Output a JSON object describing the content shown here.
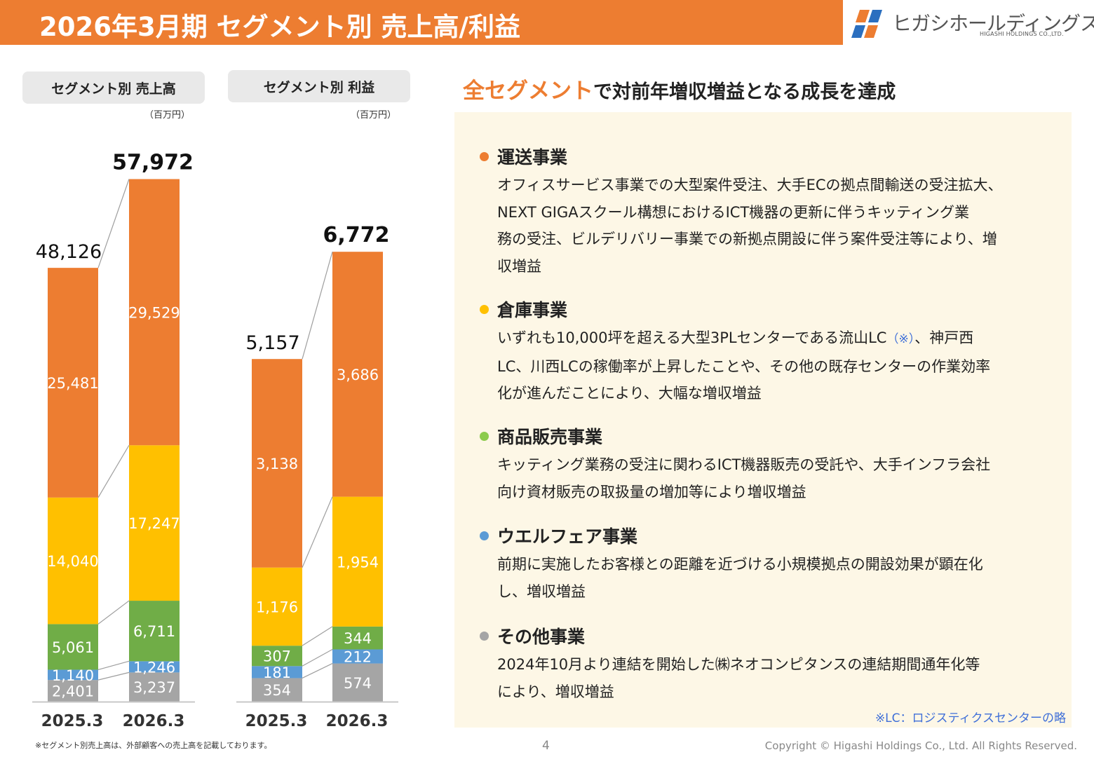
{
  "header": {
    "title": "2026年3月期 セグメント別 売上高/利益"
  },
  "logo": {
    "name": "ヒガシホールディングス",
    "sub": "HIGASHI HOLDINGS CO.,LTD."
  },
  "colors": {
    "transport": "#ED7D31",
    "warehouse": "#FFC000",
    "sales": "#70AD47",
    "welfare": "#5B9BD5",
    "other": "#A5A5A5",
    "accent": "#ED7D31"
  },
  "left": {
    "revenue_label": "セグメント別 売上高",
    "profit_label": "セグメント別 利益",
    "unit": "（百万円）"
  },
  "chart_data": [
    {
      "type": "bar",
      "stacked": true,
      "title": "セグメント別 売上高",
      "unit": "（百万円）",
      "categories": [
        "2025.3",
        "2026.3"
      ],
      "totals": [
        "48,126",
        "57,972"
      ],
      "series": [
        {
          "values": [
            2401,
            3237
          ],
          "labels": [
            "2,401",
            "3,237"
          ],
          "color": "#A5A5A5"
        },
        {
          "values": [
            1140,
            1246
          ],
          "labels": [
            "1,140",
            "1,246"
          ],
          "color": "#5B9BD5"
        },
        {
          "values": [
            5061,
            6711
          ],
          "labels": [
            "5,061",
            "6,711"
          ],
          "color": "#70AD47"
        },
        {
          "values": [
            14040,
            17247
          ],
          "labels": [
            "14,040",
            "17,247"
          ],
          "color": "#FFC000"
        },
        {
          "values": [
            25481,
            29529
          ],
          "labels": [
            "25,481",
            "29,529"
          ],
          "color": "#ED7D31"
        }
      ]
    },
    {
      "type": "bar",
      "stacked": true,
      "title": "セグメント別 利益",
      "unit": "（百万円）",
      "categories": [
        "2025.3",
        "2026.3"
      ],
      "totals": [
        "5,157",
        "6,772"
      ],
      "series": [
        {
          "values": [
            354,
            574
          ],
          "labels": [
            "354",
            "574"
          ],
          "color": "#A5A5A5"
        },
        {
          "values": [
            181,
            212
          ],
          "labels": [
            "181",
            "212"
          ],
          "color": "#5B9BD5"
        },
        {
          "values": [
            307,
            344
          ],
          "labels": [
            "307",
            "344"
          ],
          "color": "#70AD47"
        },
        {
          "values": [
            1176,
            1954
          ],
          "labels": [
            "1,176",
            "1,954"
          ],
          "color": "#FFC000"
        },
        {
          "values": [
            3138,
            3686
          ],
          "labels": [
            "3,138",
            "3,686"
          ],
          "color": "#ED7D31"
        }
      ]
    }
  ],
  "right": {
    "headline_accent": "全セグメント",
    "headline_rest": "で対前年増収増益となる成長を達成",
    "segments": [
      {
        "title": "運送事業",
        "color": "#ED7D31",
        "lines": [
          "オフィスサービス事業での大型案件受注、大手ECの拠点間輸送の受注拡大、",
          "NEXT GIGAスクール構想におけるICT機器の更新に伴うキッティング業",
          "務の受注、ビルデリバリー事業での新拠点開設に伴う案件受注等により、増",
          "収増益"
        ]
      },
      {
        "title": "倉庫事業",
        "color": "#FFC000",
        "line1_pre": "いずれも10,000坪を超える大型3PLセンターである流山LC",
        "line1_mark": "（※）",
        "line1_post": "、神戸西",
        "lines_rest": [
          "LC、川西LCの稼働率が上昇したことや、その他の既存センターの作業効率",
          "化が進んだことにより、大幅な増収増益"
        ]
      },
      {
        "title": "商品販売事業",
        "color": "#8CCB4C",
        "lines": [
          "キッティング業務の受注に関わるICT機器販売の受託や、大手インフラ会社",
          "向け資材販売の取扱量の増加等により増収増益"
        ]
      },
      {
        "title": "ウエルフェア事業",
        "color": "#5B9BD5",
        "lines": [
          "前期に実施したお客様との距離を近づける小規模拠点の開設効果が顕在化",
          "し、増収増益"
        ]
      },
      {
        "title": "その他事業",
        "color": "#A5A5A5",
        "lines": [
          "2024年10月より連結を開始した㈱ネオコンピタンスの連結期間通年化等",
          "により、増収増益"
        ]
      }
    ],
    "lc_note": "※LC：ロジスティクスセンターの略"
  },
  "footer": {
    "note": "※セグメント別売上高は、外部顧客への売上高を記載しております。",
    "page": "4",
    "copyright": "Copyright © Higashi Holdings Co., Ltd. All Rights Reserved."
  }
}
